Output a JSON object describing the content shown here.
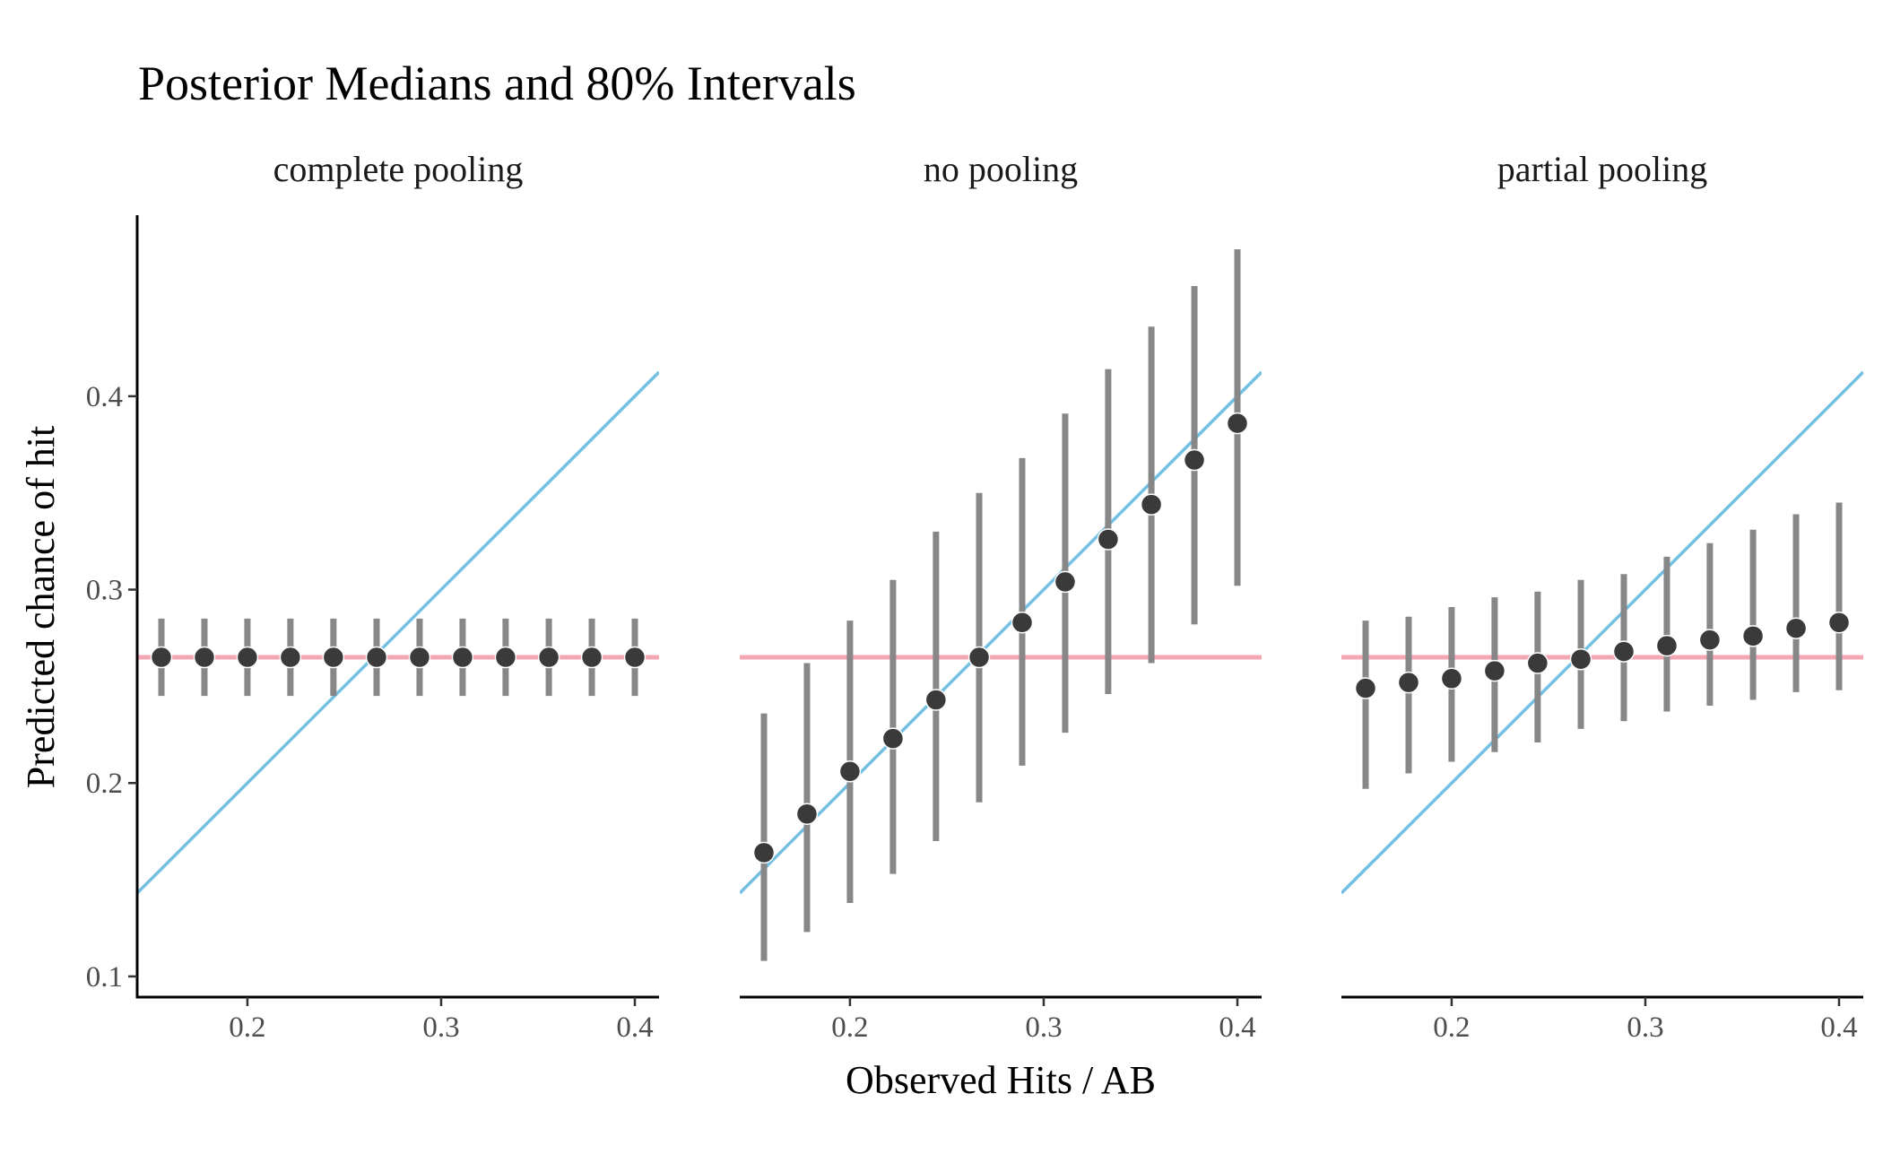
{
  "chart_data": {
    "type": "scatter",
    "title": "Posterior Medians and 80% Intervals",
    "xlabel": "Observed Hits / AB",
    "ylabel": "Predicted chance of hit",
    "xlim": [
      0.1431,
      0.4125
    ],
    "ylim": [
      0.0893,
      0.4936
    ],
    "x_ticks": [
      0.2,
      0.3,
      0.4
    ],
    "x_tick_labels": [
      "0.2",
      "0.3",
      "0.4"
    ],
    "y_ticks": [
      0.1,
      0.2,
      0.3,
      0.4
    ],
    "y_tick_labels": [
      "0.1",
      "0.2",
      "0.3",
      "0.4"
    ],
    "grid": false,
    "legend": "none",
    "reference_lines": {
      "pooled_average": {
        "value": 0.265,
        "color": "#F4A6B4",
        "description": "horizontal line"
      },
      "identity": {
        "slope": 1,
        "intercept": 0,
        "color": "#74C0E3",
        "description": "y = x diagonal"
      }
    },
    "colors": {
      "point": "#3a3a3a",
      "interval": "#878787",
      "point_outline": "#ffffff"
    },
    "x": [
      0.1556,
      0.1778,
      0.2,
      0.2222,
      0.2444,
      0.2667,
      0.2889,
      0.3111,
      0.3333,
      0.3556,
      0.3778,
      0.4
    ],
    "panels": [
      {
        "name": "complete pooling",
        "median": [
          0.265,
          0.265,
          0.265,
          0.265,
          0.265,
          0.265,
          0.265,
          0.265,
          0.265,
          0.265,
          0.265,
          0.265
        ],
        "lower": [
          0.245,
          0.245,
          0.245,
          0.245,
          0.245,
          0.245,
          0.245,
          0.245,
          0.245,
          0.245,
          0.245,
          0.245
        ],
        "upper": [
          0.285,
          0.285,
          0.285,
          0.285,
          0.285,
          0.285,
          0.285,
          0.285,
          0.285,
          0.285,
          0.285,
          0.285
        ]
      },
      {
        "name": "no pooling",
        "median": [
          0.164,
          0.184,
          0.206,
          0.223,
          0.243,
          0.265,
          0.283,
          0.304,
          0.326,
          0.344,
          0.367,
          0.386
        ],
        "lower": [
          0.108,
          0.123,
          0.138,
          0.153,
          0.17,
          0.19,
          0.209,
          0.226,
          0.246,
          0.262,
          0.282,
          0.302
        ],
        "upper": [
          0.236,
          0.262,
          0.284,
          0.305,
          0.33,
          0.35,
          0.368,
          0.391,
          0.414,
          0.436,
          0.457,
          0.476
        ]
      },
      {
        "name": "partial pooling",
        "median": [
          0.249,
          0.252,
          0.254,
          0.258,
          0.262,
          0.264,
          0.268,
          0.271,
          0.274,
          0.276,
          0.28,
          0.283
        ],
        "lower": [
          0.197,
          0.205,
          0.211,
          0.216,
          0.221,
          0.228,
          0.232,
          0.237,
          0.24,
          0.243,
          0.247,
          0.248
        ],
        "upper": [
          0.284,
          0.286,
          0.291,
          0.296,
          0.299,
          0.305,
          0.308,
          0.317,
          0.324,
          0.331,
          0.339,
          0.345
        ]
      }
    ]
  }
}
